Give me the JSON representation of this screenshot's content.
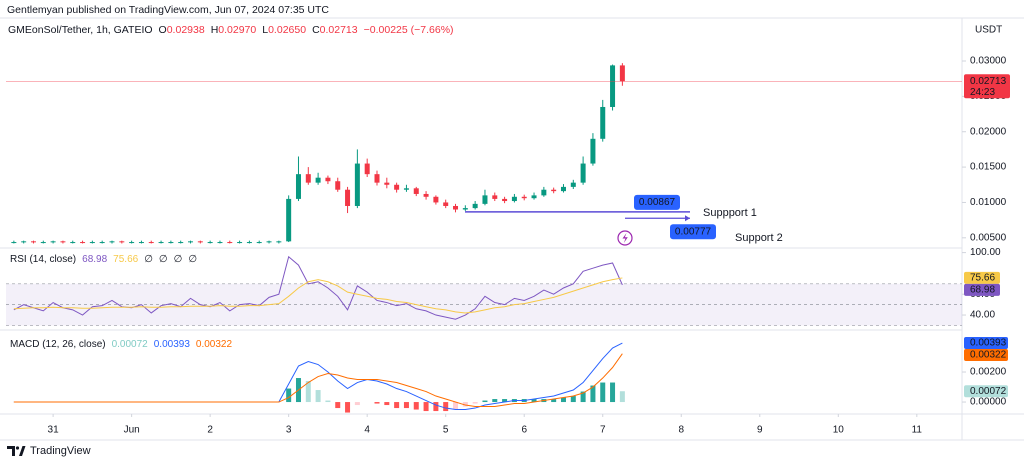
{
  "header": {
    "published": "Gentlemyan published on TradingView.com, Jun 07, 2024 07:35 UTC"
  },
  "chart_data": [
    {
      "type": "candlestick",
      "symbol": "GMEonSol/Tether, 1h, GATEIO",
      "legend": [
        {
          "key": "O",
          "text": "0.02938"
        },
        {
          "key": "H",
          "text": "0.02970"
        },
        {
          "key": "L",
          "text": "0.02650"
        },
        {
          "key": "C",
          "text": "0.02713"
        }
      ],
      "change": "−0.00225 (−7.66%)",
      "currency": "USDT",
      "countdown": "24:23",
      "up_color": "#089981",
      "down_color": "#f23645",
      "x": [
        -0.5,
        -0.375,
        -0.25,
        -0.125,
        0,
        0.125,
        0.25,
        0.375,
        0.5,
        0.625,
        0.75,
        0.875,
        1,
        1.125,
        1.25,
        1.375,
        1.5,
        1.625,
        1.75,
        1.875,
        2,
        2.125,
        2.25,
        2.375,
        2.5,
        2.625,
        2.75,
        2.875,
        3,
        3.125,
        3.25,
        3.375,
        3.5,
        3.625,
        3.75,
        3.875,
        4,
        4.125,
        4.25,
        4.375,
        4.5,
        4.625,
        4.75,
        4.875,
        5,
        5.125,
        5.25,
        5.375,
        5.5,
        5.625,
        5.75,
        5.875,
        6,
        6.125,
        6.25,
        6.375,
        6.5,
        6.625,
        6.75,
        6.875,
        7,
        7.125,
        7.25
      ],
      "open": [
        0.0044,
        0.0044,
        0.0045,
        0.0044,
        0.0044,
        0.0045,
        0.0044,
        0.0044,
        0.0043,
        0.0044,
        0.0044,
        0.0045,
        0.0044,
        0.0044,
        0.0044,
        0.0043,
        0.0044,
        0.0044,
        0.0044,
        0.0045,
        0.0044,
        0.0044,
        0.0044,
        0.0043,
        0.0044,
        0.0044,
        0.0044,
        0.0045,
        0.0045,
        0.0105,
        0.014,
        0.0128,
        0.0135,
        0.013,
        0.0118,
        0.0095,
        0.0155,
        0.014,
        0.0128,
        0.0125,
        0.0118,
        0.012,
        0.0112,
        0.0108,
        0.01,
        0.0095,
        0.009,
        0.0092,
        0.0098,
        0.011,
        0.0105,
        0.0102,
        0.0108,
        0.0106,
        0.011,
        0.0118,
        0.0116,
        0.0122,
        0.0128,
        0.0155,
        0.019,
        0.0235,
        0.02938
      ],
      "high": [
        0.0046,
        0.0046,
        0.0046,
        0.0046,
        0.0046,
        0.0046,
        0.0046,
        0.0046,
        0.0046,
        0.0046,
        0.0046,
        0.0046,
        0.0046,
        0.0046,
        0.0046,
        0.0046,
        0.0046,
        0.0046,
        0.0046,
        0.0046,
        0.0046,
        0.0046,
        0.0046,
        0.0046,
        0.0046,
        0.0046,
        0.0046,
        0.0046,
        0.011,
        0.0165,
        0.015,
        0.0142,
        0.0138,
        0.0135,
        0.0122,
        0.0175,
        0.0162,
        0.0145,
        0.0135,
        0.0128,
        0.0125,
        0.0122,
        0.0116,
        0.011,
        0.0104,
        0.0098,
        0.0096,
        0.0102,
        0.0118,
        0.0114,
        0.0108,
        0.0112,
        0.0111,
        0.0114,
        0.0122,
        0.0121,
        0.0126,
        0.0132,
        0.0165,
        0.0198,
        0.0245,
        0.0295,
        0.0297
      ],
      "low": [
        0.0042,
        0.0042,
        0.0042,
        0.0042,
        0.0042,
        0.0042,
        0.0042,
        0.0042,
        0.0042,
        0.0042,
        0.0042,
        0.0042,
        0.0042,
        0.0042,
        0.0042,
        0.0042,
        0.0042,
        0.0042,
        0.0042,
        0.0042,
        0.0042,
        0.0042,
        0.0042,
        0.0042,
        0.0042,
        0.0042,
        0.0042,
        0.0042,
        0.0044,
        0.0102,
        0.0125,
        0.0125,
        0.0126,
        0.0115,
        0.0085,
        0.0092,
        0.0136,
        0.0124,
        0.012,
        0.0114,
        0.0115,
        0.0109,
        0.0104,
        0.0097,
        0.0092,
        0.0086,
        0.0088,
        0.009,
        0.0096,
        0.0102,
        0.0099,
        0.01,
        0.0103,
        0.0104,
        0.0108,
        0.0113,
        0.0114,
        0.0119,
        0.0125,
        0.0152,
        0.0186,
        0.023,
        0.0265
      ],
      "close": [
        0.0044,
        0.0045,
        0.0044,
        0.0044,
        0.0045,
        0.0044,
        0.0044,
        0.0043,
        0.0044,
        0.0044,
        0.0045,
        0.0044,
        0.0044,
        0.0044,
        0.0043,
        0.0044,
        0.0044,
        0.0044,
        0.0045,
        0.0044,
        0.0044,
        0.0044,
        0.0043,
        0.0044,
        0.0044,
        0.0044,
        0.0045,
        0.0045,
        0.0105,
        0.014,
        0.0128,
        0.0135,
        0.013,
        0.0118,
        0.0095,
        0.0155,
        0.014,
        0.0128,
        0.0125,
        0.0118,
        0.012,
        0.0112,
        0.0108,
        0.01,
        0.0095,
        0.009,
        0.0092,
        0.0098,
        0.011,
        0.0105,
        0.0102,
        0.0108,
        0.0106,
        0.011,
        0.0118,
        0.0116,
        0.0122,
        0.0128,
        0.0155,
        0.019,
        0.0235,
        0.02938,
        0.02713
      ],
      "xlim": [
        -0.6,
        11.55
      ],
      "xticks": [
        {
          "value": 0,
          "label": "31"
        },
        {
          "value": 1,
          "label": "Jun"
        },
        {
          "value": 2,
          "label": "2"
        },
        {
          "value": 3,
          "label": "3"
        },
        {
          "value": 4,
          "label": "4"
        },
        {
          "value": 5,
          "label": "5"
        },
        {
          "value": 6,
          "label": "6"
        },
        {
          "value": 7,
          "label": "7"
        },
        {
          "value": 8,
          "label": "8"
        },
        {
          "value": 9,
          "label": "9"
        },
        {
          "value": 10,
          "label": "10"
        },
        {
          "value": 11,
          "label": "11"
        }
      ],
      "ylim": [
        0.0037,
        0.0358
      ],
      "yticks": [
        {
          "value": 0.005,
          "label": "0.00500"
        },
        {
          "value": 0.01,
          "label": "0.01000"
        },
        {
          "value": 0.015,
          "label": "0.01500"
        },
        {
          "value": 0.02,
          "label": "0.02000"
        },
        {
          "value": 0.025,
          "label": "0.02500"
        },
        {
          "value": 0.03,
          "label": "0.03000"
        }
      ],
      "annotations": [
        {
          "text": "Suppport 1",
          "price": 0.00867
        },
        {
          "text": "Support 2",
          "price": 0.00777
        }
      ]
    },
    {
      "type": "line",
      "title": "RSI (14, close)",
      "extra_labels": [
        "∅",
        "∅",
        "∅",
        "∅"
      ],
      "ylim": [
        28.5,
        102.5
      ],
      "yticks": [
        {
          "value": 100,
          "label": "100.00"
        },
        {
          "value": 60,
          "label": "60.00"
        },
        {
          "value": 40,
          "label": "40.00"
        }
      ],
      "bands": [
        70,
        50,
        30
      ],
      "series": [
        {
          "color": "#7e57c2",
          "text_color": "#ffffff",
          "values": [
            45,
            50,
            47,
            44,
            52,
            47,
            45,
            40,
            48,
            49,
            54,
            48,
            47,
            50,
            42,
            49,
            51,
            48,
            56,
            50,
            48,
            52,
            44,
            50,
            51,
            49,
            57,
            60,
            96,
            88,
            70,
            72,
            66,
            58,
            45,
            68,
            62,
            54,
            52,
            49,
            51,
            46,
            44,
            40,
            38,
            36,
            40,
            46,
            58,
            52,
            50,
            56,
            54,
            58,
            64,
            60,
            66,
            70,
            82,
            85,
            88,
            90,
            68.98
          ]
        },
        {
          "color": "#f7c948",
          "text_color": "#131722",
          "values": [
            46,
            46.5,
            47,
            47,
            47.5,
            47,
            47,
            46.5,
            46.5,
            47,
            47.5,
            47.5,
            47.5,
            48,
            47.5,
            47.5,
            48,
            48,
            48.5,
            48.5,
            48.5,
            49,
            48.5,
            48.5,
            49,
            49,
            50,
            51,
            58,
            66,
            72,
            74,
            72,
            68,
            62,
            60,
            58,
            56,
            55,
            53,
            52,
            50,
            48,
            46,
            45,
            43,
            42,
            43,
            45,
            47,
            48,
            50,
            51,
            53,
            55,
            57,
            60,
            63,
            66,
            69,
            72,
            74,
            75.66
          ]
        }
      ]
    },
    {
      "type": "combo",
      "title": "MACD (12, 26, close)",
      "ylim": [
        -0.00053,
        0.0046
      ],
      "yticks": [
        {
          "value": 0.002,
          "label": "0.00200"
        },
        {
          "value": 0,
          "label": "0.00000"
        }
      ],
      "series": [
        {
          "kind": "bar",
          "color": "#26a69a",
          "text_color": "#131722",
          "values": [
            0,
            0,
            0,
            0,
            0,
            0,
            0,
            0,
            0,
            0,
            0,
            0,
            0,
            0,
            0,
            0,
            0,
            0,
            0,
            0,
            0,
            0,
            0,
            0,
            0,
            0,
            0,
            0,
            0.0009,
            0.0016,
            0.0014,
            0.0008,
            0.0001,
            -0.0004,
            -0.0007,
            -0.0002,
            0,
            -0.0001,
            -0.0002,
            -0.0004,
            -0.0004,
            -0.0005,
            -0.0006,
            -0.0006,
            -0.0006,
            -0.0005,
            -0.0003,
            -0.0001,
            0.0001,
            0.0002,
            0.0002,
            0.0002,
            0.0002,
            0.0002,
            0.0002,
            0.0002,
            0.0003,
            0.0004,
            0.0007,
            0.0011,
            0.0013,
            0.0013,
            0.00072
          ]
        },
        {
          "kind": "line",
          "color": "#2962ff",
          "text_color": "#ffffff",
          "values": [
            0,
            0,
            0,
            0,
            0,
            0,
            0,
            0,
            0,
            0,
            0,
            0,
            0,
            0,
            0,
            0,
            0,
            0,
            0,
            0,
            0,
            0,
            0,
            0,
            0,
            0,
            0,
            0,
            0.0012,
            0.0024,
            0.0027,
            0.0025,
            0.002,
            0.0014,
            0.0009,
            0.0013,
            0.0015,
            0.0014,
            0.0012,
            0.0009,
            0.0007,
            0.0004,
            0.0001,
            -0.0002,
            -0.0004,
            -0.0005,
            -0.0005,
            -0.0004,
            -0.0002,
            -0.0001,
            0,
            0.0001,
            0.0001,
            0.0002,
            0.0003,
            0.0004,
            0.0006,
            0.0008,
            0.0013,
            0.0021,
            0.0029,
            0.0036,
            0.00393
          ]
        },
        {
          "kind": "line",
          "color": "#ff6d00",
          "text_color": "#ffffff",
          "values": [
            0,
            0,
            0,
            0,
            0,
            0,
            0,
            0,
            0,
            0,
            0,
            0,
            0,
            0,
            0,
            0,
            0,
            0,
            0,
            0,
            0,
            0,
            0,
            0,
            0,
            0,
            0,
            0,
            0.0003,
            0.0008,
            0.0013,
            0.0017,
            0.0019,
            0.0018,
            0.0016,
            0.0015,
            0.0015,
            0.0015,
            0.0014,
            0.0013,
            0.0011,
            0.0009,
            0.0007,
            0.0004,
            0.0002,
            0,
            -0.0002,
            -0.0003,
            -0.0003,
            -0.0003,
            -0.0002,
            -0.0001,
            -0.0001,
            0,
            0.0001,
            0.0002,
            0.0003,
            0.0004,
            0.0006,
            0.001,
            0.0016,
            0.0023,
            0.00322
          ]
        }
      ]
    }
  ],
  "footer": {
    "brand": "TradingView"
  }
}
